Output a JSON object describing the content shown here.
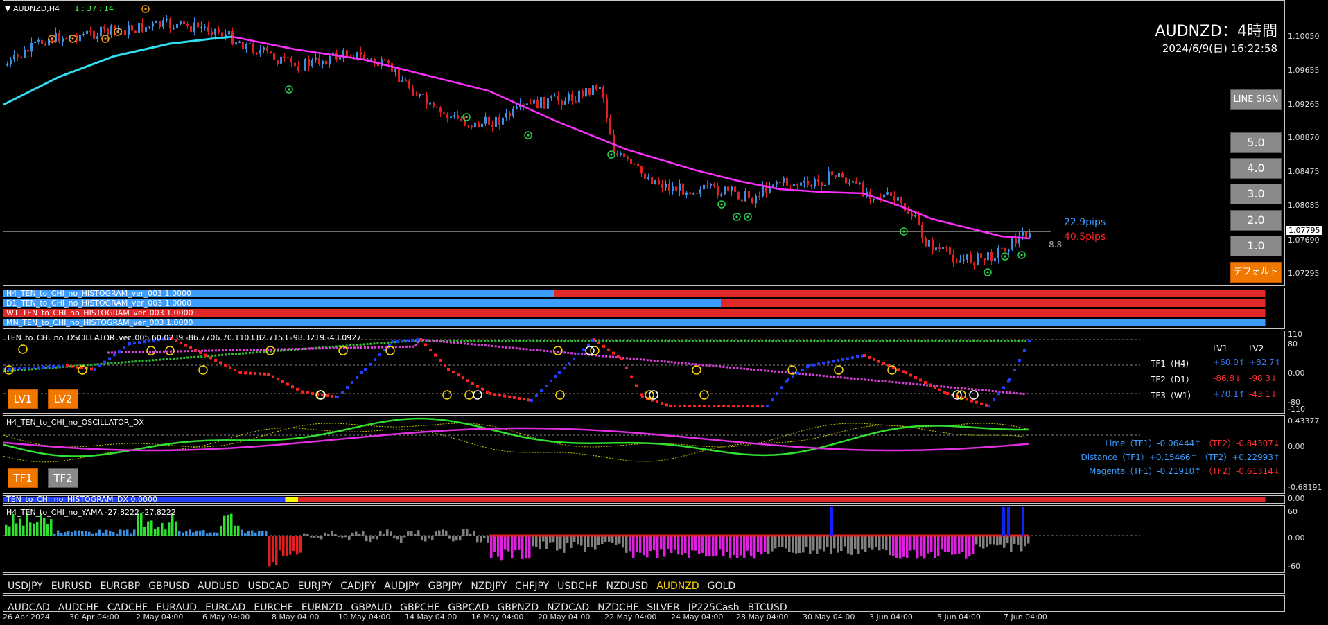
{
  "chart": {
    "symbol_tf": "AUDNZD,H4",
    "countdown": "1 : 37 : 14",
    "big_title": "AUDNZD：4時間",
    "datetime": "2024/6/9(日) 16:22:58",
    "prices": [
      "1.10050",
      "1.09655",
      "1.09265",
      "1.08870",
      "1.08475",
      "1.08085",
      "1.07690",
      "1.07295"
    ],
    "current_price": "1.07795",
    "pips_blue": "22.9pips",
    "pips_red": "40.5pips",
    "spread": "8.8"
  },
  "buttons": {
    "line_sign": "LINE SIGN",
    "levels": [
      "5.0",
      "4.0",
      "3.0",
      "2.0",
      "1.0"
    ],
    "default": "デフォルト",
    "lv1": "LV1",
    "lv2": "LV2",
    "tf1": "TF1",
    "tf2": "TF2"
  },
  "histograms": [
    {
      "label": "H4_TEN_to_CHI_no_HISTOGRAM_ver_003 1.0000"
    },
    {
      "label": "D1_TEN_to_CHI_no_HISTOGRAM_ver_003 1.0000"
    },
    {
      "label": "W1_TEN_to_CHI_no_HISTOGRAM_ver_003 1.0000"
    },
    {
      "label": "MN_TEN_to_CHI_no_HISTOGRAM_ver_003 1.0000"
    }
  ],
  "oscillator": {
    "title": "TEN_to_CHI_no_OSCILLATOR_ver_005 60.0239 -86.7706 70.1103 82.7153 -98.3219 -43.0927",
    "scale": [
      "110",
      "80",
      "0.00",
      "-80",
      "-110"
    ],
    "head_lv1": "LV1",
    "head_lv2": "LV2",
    "rows": [
      {
        "name": "TF1（H4）",
        "lv1": "+60.0↑",
        "lv2": "+82.7↑",
        "c1": "#3c7cff",
        "c2": "#3c7cff"
      },
      {
        "name": "TF2（D1）",
        "lv1": "-86.8↓",
        "lv2": "-98.3↓",
        "c1": "#ff3030",
        "c2": "#ff3030"
      },
      {
        "name": "TF3（W1）",
        "lv1": "+70.1↑",
        "lv2": "-43.1↓",
        "c1": "#3c7cff",
        "c2": "#ff3030"
      }
    ]
  },
  "dx": {
    "title": "H4_TEN_to_CHI_no_OSCILLATOR_DX",
    "scale": [
      "0.43377",
      "0.00",
      "-0.68191"
    ],
    "lines": [
      {
        "name": "Lime（TF1）",
        "v1": "-0.06444↑",
        "tf2": "（TF2）",
        "v2": "-0.84307↓"
      },
      {
        "name": "Distance（TF1）",
        "v1": "+0.15466↑",
        "tf2": "（TF2）",
        "v2": "+0.22993↑"
      },
      {
        "name": "Magenta（TF1）",
        "v1": "-0.21910↑",
        "tf2": "（TF2）",
        "v2": "-0.61314↓"
      }
    ]
  },
  "hist_dx": {
    "label": "TEN_to_CHI_no_HISTOGRAM_DX 0.0000",
    "scale": "0.00"
  },
  "yama": {
    "title": "H4_TEN_to_CHI_no_YAMA -27.8222 -27.8222",
    "scale": [
      "60",
      "0.00",
      "-60"
    ]
  },
  "symbols_row1": [
    "USDJPY",
    "EURUSD",
    "EURGBP",
    "GBPUSD",
    "AUDUSD",
    "USDCAD",
    "EURJPY",
    "CADJPY",
    "AUDJPY",
    "GBPJPY",
    "NZDJPY",
    "CHFJPY",
    "USDCHF",
    "NZDUSD",
    "AUDNZD",
    "GOLD"
  ],
  "symbols_row2": [
    "AUDCAD",
    "AUDCHF",
    "CADCHF",
    "EURAUD",
    "EURCAD",
    "EURCHF",
    "EURNZD",
    "GBPAUD",
    "GBPCHF",
    "GBPCAD",
    "GBPNZD",
    "NZDCAD",
    "NZDCHF",
    "SILVER",
    "JP225Cash",
    "BTCUSD"
  ],
  "active_symbol": "AUDNZD",
  "time_axis": [
    "26 Apr 2024",
    "30 Apr 04:00",
    "2 May 04:00",
    "6 May 04:00",
    "8 May 04:00",
    "10 May 04:00",
    "14 May 04:00",
    "16 May 04:00",
    "20 May 04:00",
    "22 May 04:00",
    "24 May 04:00",
    "28 May 04:00",
    "30 May 04:00",
    "3 Jun 04:00",
    "5 Jun 04:00",
    "7 Jun 04:00"
  ]
}
